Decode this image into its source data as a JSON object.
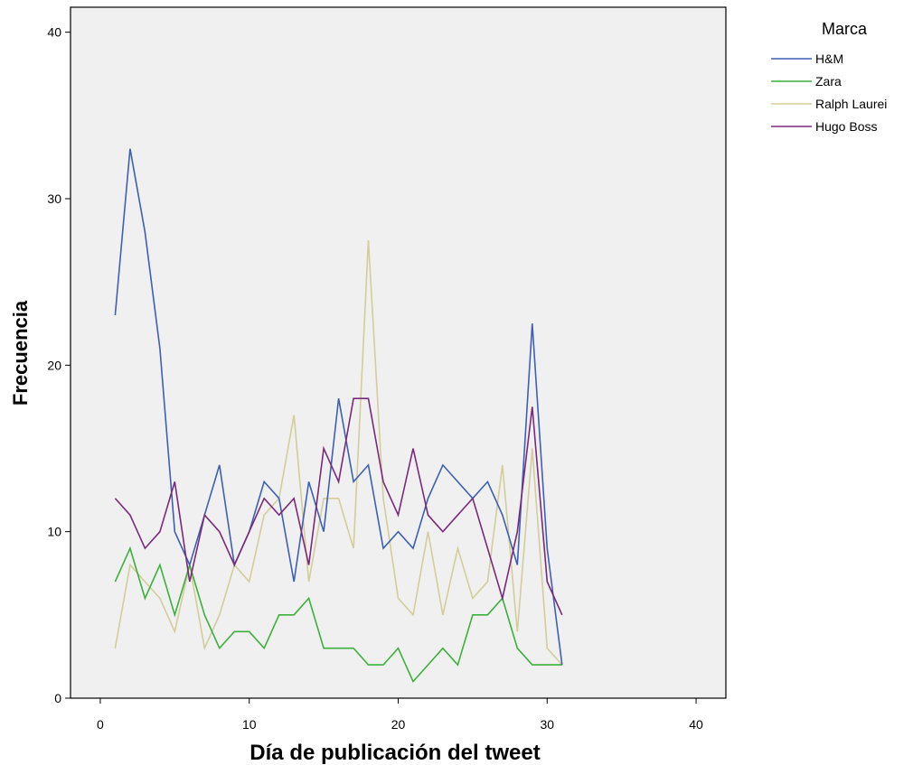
{
  "chart_data": {
    "type": "line",
    "xlabel": "Día de publicación del tweet",
    "ylabel": "Frecuencia",
    "xlim": [
      -2,
      42
    ],
    "ylim": [
      0,
      41.5
    ],
    "xticks": [
      0,
      10,
      20,
      30,
      40
    ],
    "yticks": [
      0,
      10,
      20,
      30,
      40
    ],
    "grid": false,
    "legend_position": "right",
    "legend_title": "Marca",
    "series": [
      {
        "name": "H&M",
        "color": "#3f5fb5",
        "x": [
          1,
          2,
          3,
          4,
          5,
          6,
          7,
          8,
          9,
          10,
          11,
          12,
          13,
          14,
          15,
          16,
          17,
          18,
          19,
          20,
          21,
          22,
          23,
          24,
          25,
          26,
          27,
          28,
          29,
          30,
          31
        ],
        "values": [
          23,
          33,
          28,
          21,
          10,
          8,
          11,
          14,
          8,
          10,
          13,
          12,
          7,
          13,
          10,
          18,
          13,
          14,
          9,
          10,
          9,
          12,
          14,
          13,
          12,
          13,
          11,
          8,
          22.5,
          9,
          2
        ]
      },
      {
        "name": "Zara",
        "color": "#3cb03c",
        "x": [
          1,
          2,
          3,
          4,
          5,
          6,
          7,
          8,
          9,
          10,
          11,
          12,
          13,
          14,
          15,
          16,
          17,
          18,
          19,
          20,
          21,
          22,
          23,
          24,
          25,
          26,
          27,
          28,
          29,
          30,
          31
        ],
        "values": [
          7,
          9,
          6,
          8,
          5,
          8,
          5,
          3,
          4,
          4,
          3,
          5,
          5,
          6,
          3,
          3,
          3,
          2,
          2,
          3,
          1,
          2,
          3,
          2,
          5,
          5,
          6,
          3,
          2,
          2,
          2
        ]
      },
      {
        "name": "Ralph Laurei",
        "color": "#d3cd9a",
        "x": [
          1,
          2,
          3,
          4,
          5,
          6,
          7,
          8,
          9,
          10,
          11,
          12,
          13,
          14,
          15,
          16,
          17,
          18,
          19,
          20,
          21,
          22,
          23,
          24,
          25,
          26,
          27,
          28,
          29,
          30,
          31
        ],
        "values": [
          3,
          8,
          7,
          6,
          4,
          8,
          3,
          5,
          8,
          7,
          11,
          12,
          17,
          7,
          12,
          12,
          9,
          27.5,
          12,
          6,
          5,
          10,
          5,
          9,
          6,
          7,
          14,
          4,
          15,
          3,
          2
        ]
      },
      {
        "name": "Hugo Boss",
        "color": "#7a2a7a",
        "x": [
          1,
          2,
          3,
          4,
          5,
          6,
          7,
          8,
          9,
          10,
          11,
          12,
          13,
          14,
          15,
          16,
          17,
          18,
          19,
          20,
          21,
          22,
          23,
          24,
          25,
          26,
          27,
          28,
          29,
          30,
          31
        ],
        "values": [
          12,
          11,
          9,
          10,
          13,
          7,
          11,
          10,
          8,
          10,
          12,
          11,
          12,
          8,
          15,
          13,
          18,
          18,
          13,
          11,
          15,
          11,
          10,
          11,
          12,
          9,
          6,
          10,
          17.5,
          7,
          5
        ]
      }
    ]
  }
}
